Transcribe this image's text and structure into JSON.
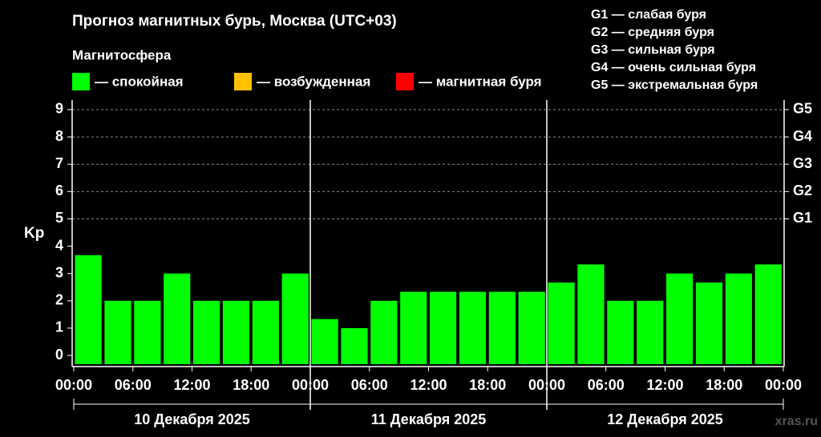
{
  "chart_data": {
    "type": "bar",
    "title": "Прогноз магнитных бурь, Москва (UTC+03)",
    "legend_title": "Магнитосфера",
    "legend": [
      {
        "label": "— спокойная",
        "color": "#00ff00"
      },
      {
        "label": "— возбужденная",
        "color": "#ffc000"
      },
      {
        "label": "— магнитная буря",
        "color": "#ff0000"
      }
    ],
    "g_legend": [
      "G1 — слабая буря",
      "G2 — средняя буря",
      "G3 — сильная буря",
      "G4 — очень сильная буря",
      "G5 — экстремальная буря"
    ],
    "ylabel": "Kp",
    "color": "#00ff00",
    "x": [
      0,
      3,
      6,
      9,
      12,
      15,
      18,
      21,
      24,
      27,
      30,
      33,
      36,
      39,
      42,
      45,
      48,
      51,
      54,
      57,
      60,
      63,
      66,
      69
    ],
    "values": [
      3.67,
      2,
      2,
      3,
      2,
      2,
      2,
      3,
      1.33,
      1,
      2,
      2.33,
      2.33,
      2.33,
      2.33,
      2.33,
      2.67,
      3.33,
      2,
      2,
      3,
      2.67,
      3,
      3.33
    ],
    "xlim": [
      0,
      72
    ],
    "xticks": [
      {
        "value": 0,
        "label": "00:00"
      },
      {
        "value": 6,
        "label": "06:00"
      },
      {
        "value": 12,
        "label": "12:00"
      },
      {
        "value": 18,
        "label": "18:00"
      },
      {
        "value": 24,
        "label": "00:00"
      },
      {
        "value": 30,
        "label": "06:00"
      },
      {
        "value": 36,
        "label": "12:00"
      },
      {
        "value": 42,
        "label": "18:00"
      },
      {
        "value": 48,
        "label": "00:00"
      },
      {
        "value": 54,
        "label": "06:00"
      },
      {
        "value": 60,
        "label": "12:00"
      },
      {
        "value": 66,
        "label": "18:00"
      },
      {
        "value": 72,
        "label": "00:00"
      }
    ],
    "days": [
      "10 Декабря 2025",
      "11 Декабря 2025",
      "12 Декабря 2025"
    ],
    "ylim": [
      -0.32,
      9.35
    ],
    "yticks": [
      0,
      1,
      2,
      3,
      4,
      5,
      6,
      7,
      8,
      9
    ],
    "y2lim": [
      -0.32,
      9.35
    ],
    "y2ticks": [
      {
        "value": 5,
        "label": "G1"
      },
      {
        "value": 6,
        "label": "G2"
      },
      {
        "value": 7,
        "label": "G3"
      },
      {
        "value": 8,
        "label": "G4"
      },
      {
        "value": 9,
        "label": "G5"
      }
    ],
    "grid": true,
    "watermark": "xras.ru"
  }
}
